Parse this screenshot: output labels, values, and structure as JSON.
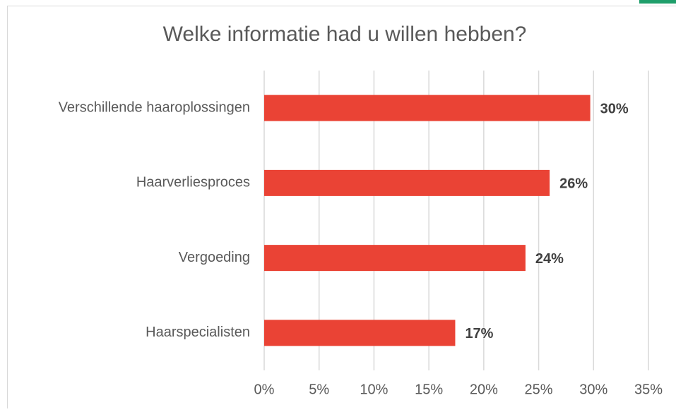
{
  "chart_data": {
    "type": "bar",
    "orientation": "horizontal",
    "title": "Welke informatie had u willen hebben?",
    "categories": [
      "Verschillende haaroplossingen",
      "Haarverliesproces",
      "Vergoeding",
      "Haarspecialisten"
    ],
    "values": [
      29.7,
      26,
      23.8,
      17.4
    ],
    "value_labels": [
      "30%",
      "26%",
      "24%",
      "17%"
    ],
    "color": "#ea4335",
    "xlim": [
      0,
      35
    ],
    "xticks": [
      {
        "value": 0,
        "label": "0%"
      },
      {
        "value": 5,
        "label": "5%"
      },
      {
        "value": 10,
        "label": "10%"
      },
      {
        "value": 15,
        "label": "15%"
      },
      {
        "value": 20,
        "label": "20%"
      },
      {
        "value": 25,
        "label": "25%"
      },
      {
        "value": 30,
        "label": "30%"
      },
      {
        "value": 35,
        "label": "35%"
      }
    ],
    "grid": true
  }
}
